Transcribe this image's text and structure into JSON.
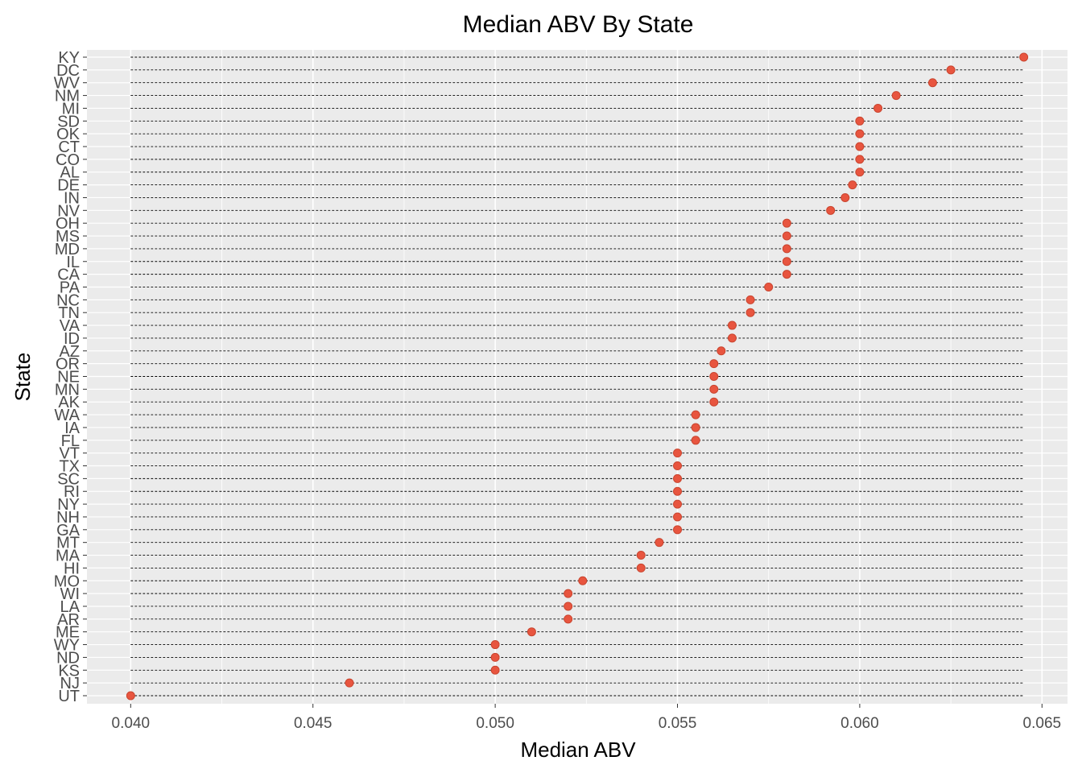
{
  "chart_data": {
    "type": "scatter",
    "title": "Median ABV By State",
    "xlabel": "Median ABV",
    "ylabel": "State",
    "xlim": [
      0.0388,
      0.0657
    ],
    "xticks": [
      0.04,
      0.045,
      0.05,
      0.055,
      0.06,
      0.065
    ],
    "xtick_labels": [
      "0.040",
      "0.045",
      "0.050",
      "0.055",
      "0.060",
      "0.065"
    ],
    "grid": true,
    "legend": "none",
    "segment_style": "dashed",
    "colors": {
      "panel_background": "#ebebeb",
      "grid": "#ffffff",
      "point": "#e8553f",
      "segment": "#000000",
      "tick_label": "#4d4d4d"
    },
    "categories": [
      "KY",
      "DC",
      "WV",
      "NM",
      "MI",
      "SD",
      "OK",
      "CT",
      "CO",
      "AL",
      "DE",
      "IN",
      "NV",
      "OH",
      "MS",
      "MD",
      "IL",
      "CA",
      "PA",
      "NC",
      "TN",
      "VA",
      "ID",
      "AZ",
      "OR",
      "NE",
      "MN",
      "AK",
      "WA",
      "IA",
      "FL",
      "VT",
      "TX",
      "SC",
      "RI",
      "NY",
      "NH",
      "GA",
      "MT",
      "MA",
      "HI",
      "MO",
      "WI",
      "LA",
      "AR",
      "ME",
      "WY",
      "ND",
      "KS",
      "NJ",
      "UT"
    ],
    "values": [
      0.0645,
      0.0625,
      0.062,
      0.061,
      0.0605,
      0.06,
      0.06,
      0.06,
      0.06,
      0.06,
      0.0598,
      0.0596,
      0.0592,
      0.058,
      0.058,
      0.058,
      0.058,
      0.058,
      0.0575,
      0.057,
      0.057,
      0.0565,
      0.0565,
      0.0562,
      0.056,
      0.056,
      0.056,
      0.056,
      0.0555,
      0.0555,
      0.0555,
      0.055,
      0.055,
      0.055,
      0.055,
      0.055,
      0.055,
      0.055,
      0.0545,
      0.054,
      0.054,
      0.0524,
      0.052,
      0.052,
      0.052,
      0.051,
      0.05,
      0.05,
      0.05,
      0.046,
      0.04
    ]
  }
}
